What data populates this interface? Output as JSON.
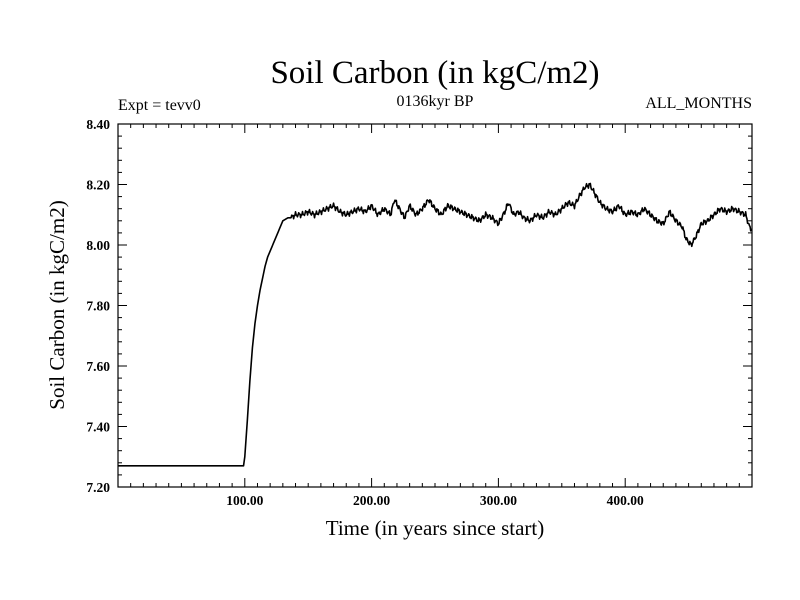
{
  "chart_data": {
    "type": "line",
    "title": "Soil Carbon (in kgC/m2)",
    "subtitle_left": "Expt = tevv0",
    "subtitle_center": "0136kyr BP",
    "subtitle_right": "ALL_MONTHS",
    "xlabel": "Time (in years since start)",
    "ylabel": "Soil Carbon (in kgC/m2)",
    "xlim": [
      0,
      500
    ],
    "ylim": [
      7.2,
      8.4
    ],
    "x_ticks": [
      100,
      200,
      300,
      400
    ],
    "x_tick_labels": [
      "100.00",
      "200.00",
      "300.00",
      "400.00"
    ],
    "y_ticks": [
      7.2,
      7.4,
      7.6,
      7.8,
      8.0,
      8.2,
      8.4
    ],
    "y_tick_labels": [
      "7.20",
      "7.40",
      "7.60",
      "7.80",
      "8.00",
      "8.20",
      "8.40"
    ],
    "grid": false,
    "series": [
      {
        "name": "Soil Carbon",
        "color": "#000000",
        "x": [
          0,
          99,
          100,
          102,
          104,
          106,
          108,
          110,
          112,
          114,
          116,
          118,
          120,
          122,
          124,
          126,
          128,
          130,
          132,
          134,
          136,
          140,
          145,
          150,
          155,
          160,
          165,
          170,
          175,
          180,
          185,
          190,
          195,
          200,
          205,
          210,
          215,
          218,
          222,
          226,
          230,
          235,
          240,
          245,
          250,
          255,
          260,
          265,
          270,
          275,
          280,
          285,
          290,
          295,
          300,
          305,
          308,
          312,
          316,
          320,
          325,
          330,
          335,
          340,
          345,
          350,
          355,
          360,
          365,
          368,
          372,
          376,
          380,
          385,
          390,
          395,
          400,
          405,
          410,
          415,
          420,
          425,
          430,
          435,
          440,
          445,
          448,
          452,
          456,
          460,
          465,
          470,
          475,
          480,
          485,
          490,
          495,
          498,
          500
        ],
        "y": [
          7.27,
          7.27,
          7.3,
          7.42,
          7.55,
          7.66,
          7.74,
          7.8,
          7.85,
          7.89,
          7.93,
          7.96,
          7.98,
          8.0,
          8.02,
          8.04,
          8.06,
          8.08,
          8.085,
          8.09,
          8.09,
          8.1,
          8.1,
          8.11,
          8.1,
          8.11,
          8.12,
          8.13,
          8.11,
          8.1,
          8.11,
          8.12,
          8.11,
          8.13,
          8.1,
          8.12,
          8.1,
          8.15,
          8.12,
          8.09,
          8.13,
          8.1,
          8.12,
          8.15,
          8.12,
          8.1,
          8.13,
          8.12,
          8.11,
          8.1,
          8.09,
          8.08,
          8.1,
          8.09,
          8.07,
          8.11,
          8.14,
          8.1,
          8.11,
          8.09,
          8.08,
          8.1,
          8.09,
          8.11,
          8.1,
          8.12,
          8.14,
          8.13,
          8.17,
          8.19,
          8.2,
          8.17,
          8.14,
          8.12,
          8.11,
          8.13,
          8.1,
          8.11,
          8.1,
          8.12,
          8.1,
          8.08,
          8.07,
          8.11,
          8.08,
          8.06,
          8.02,
          8.0,
          8.03,
          8.07,
          8.08,
          8.1,
          8.12,
          8.11,
          8.12,
          8.11,
          8.1,
          8.06,
          8.05
        ]
      }
    ]
  }
}
